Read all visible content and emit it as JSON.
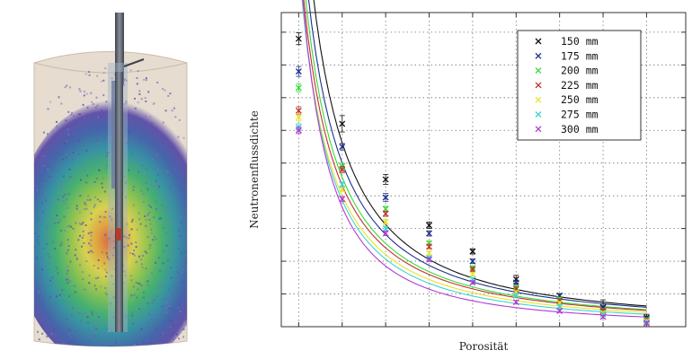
{
  "figure": {
    "left_panel": "3D simulation of a borehole neutron probe in a cylindrical sample with neutron flux heatmap",
    "colors": {
      "sample_body": "#e6dccf",
      "probe": "#5e6470",
      "flux_outer": "#5b4ba6",
      "flux_mid": "#2e8fa0",
      "flux_inner": "#d8d04a",
      "flux_core": "#d9603a"
    }
  },
  "chart_data": {
    "type": "scatter",
    "xlabel": "Porosität",
    "ylabel": "Neutronenflussdichte",
    "x": [
      1,
      2,
      3,
      4,
      5,
      6,
      7,
      8,
      9
    ],
    "xlim": [
      0.6,
      9.9
    ],
    "ylim": [
      0,
      9.6
    ],
    "grid": true,
    "legend_position": "top-right",
    "marker": "x",
    "series": [
      {
        "name": "150 mm",
        "color": "#111111",
        "values": [
          8.8,
          6.2,
          4.5,
          3.1,
          2.3,
          1.45,
          0.95,
          0.6,
          0.28
        ],
        "errors": [
          0.18,
          0.25,
          0.15,
          0.1,
          0.08,
          0.12,
          0.06,
          0.22,
          0.1
        ]
      },
      {
        "name": "175 mm",
        "color": "#1f2f8a",
        "values": [
          7.8,
          5.5,
          3.95,
          2.85,
          2.0,
          1.35,
          0.95,
          0.58,
          0.25
        ],
        "errors": [
          0.15,
          0.1,
          0.12,
          0.08,
          0.07,
          0.06,
          0.05,
          0.06,
          0.08
        ]
      },
      {
        "name": "200 mm",
        "color": "#39d93a",
        "values": [
          7.3,
          4.9,
          3.6,
          2.55,
          1.8,
          1.2,
          0.85,
          0.5,
          0.22
        ],
        "errors": [
          0.12,
          0.1,
          0.08,
          0.07,
          0.06,
          0.06,
          0.05,
          0.05,
          0.05
        ]
      },
      {
        "name": "225 mm",
        "color": "#c0322f",
        "values": [
          6.6,
          4.8,
          3.45,
          2.45,
          1.75,
          1.15,
          0.8,
          0.48,
          0.2
        ],
        "errors": [
          0.12,
          0.1,
          0.08,
          0.07,
          0.06,
          0.06,
          0.05,
          0.05,
          0.05
        ]
      },
      {
        "name": "250 mm",
        "color": "#e8e22a",
        "values": [
          6.4,
          4.2,
          3.2,
          2.25,
          1.6,
          1.05,
          0.72,
          0.42,
          0.17
        ],
        "errors": [
          0.1,
          0.08,
          0.07,
          0.06,
          0.05,
          0.05,
          0.05,
          0.05,
          0.05
        ]
      },
      {
        "name": "275 mm",
        "color": "#3fd4d2",
        "values": [
          6.1,
          4.35,
          3.0,
          2.1,
          1.45,
          0.95,
          0.62,
          0.38,
          0.14
        ],
        "errors": [
          0.1,
          0.08,
          0.07,
          0.06,
          0.05,
          0.05,
          0.05,
          0.05,
          0.05
        ]
      },
      {
        "name": "300 mm",
        "color": "#b43bd0",
        "values": [
          6.0,
          3.9,
          2.85,
          2.05,
          1.35,
          0.75,
          0.48,
          0.3,
          0.1
        ],
        "errors": [
          0.1,
          0.08,
          0.07,
          0.06,
          0.05,
          0.05,
          0.05,
          0.05,
          0.05
        ]
      }
    ]
  }
}
